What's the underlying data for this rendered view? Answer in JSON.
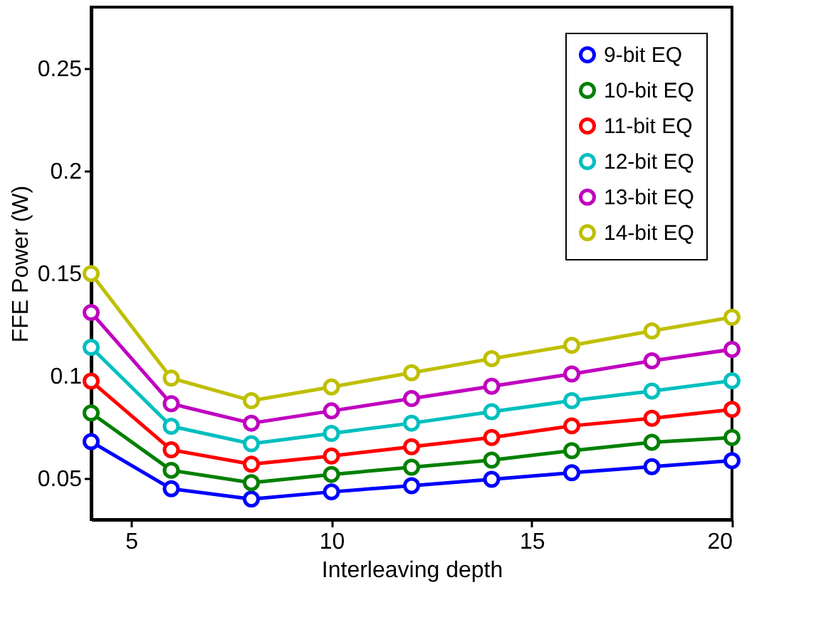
{
  "chart_data": {
    "type": "line",
    "xlabel": "Interleaving depth",
    "ylabel": "FFE Power (W)",
    "x": [
      4,
      6,
      8,
      10,
      12,
      14,
      16,
      18,
      20
    ],
    "xlim": [
      4,
      20
    ],
    "xticks": [
      5,
      10,
      15,
      20
    ],
    "ylim": [
      0.03,
      0.28
    ],
    "yticks": [
      0.05,
      0.1,
      0.15,
      0.2,
      0.25
    ],
    "grid": false,
    "legend": "top right",
    "marker": "circle",
    "line_style": "solid",
    "series": [
      {
        "name": "9-bit EQ",
        "color": "#0000ff",
        "values": [
          0.068,
          0.045,
          0.04,
          0.0435,
          0.0465,
          0.0496,
          0.0528,
          0.0558,
          0.0587
        ]
      },
      {
        "name": "10-bit EQ",
        "color": "#008000",
        "values": [
          0.082,
          0.054,
          0.048,
          0.052,
          0.0555,
          0.059,
          0.0636,
          0.0677,
          0.07
        ]
      },
      {
        "name": "11-bit EQ",
        "color": "#ff0000",
        "values": [
          0.0975,
          0.064,
          0.057,
          0.061,
          0.0655,
          0.07,
          0.0757,
          0.0794,
          0.0837
        ]
      },
      {
        "name": "12-bit EQ",
        "color": "#00bfbf",
        "values": [
          0.114,
          0.0755,
          0.067,
          0.072,
          0.077,
          0.0826,
          0.088,
          0.0927,
          0.0977
        ]
      },
      {
        "name": "13-bit EQ",
        "color": "#bf00bf",
        "values": [
          0.131,
          0.0865,
          0.077,
          0.083,
          0.089,
          0.095,
          0.101,
          0.1074,
          0.113
        ]
      },
      {
        "name": "14-bit EQ",
        "color": "#bfbf00",
        "values": [
          0.15,
          0.099,
          0.088,
          0.0947,
          0.1016,
          0.1085,
          0.115,
          0.122,
          0.1287
        ]
      }
    ]
  }
}
